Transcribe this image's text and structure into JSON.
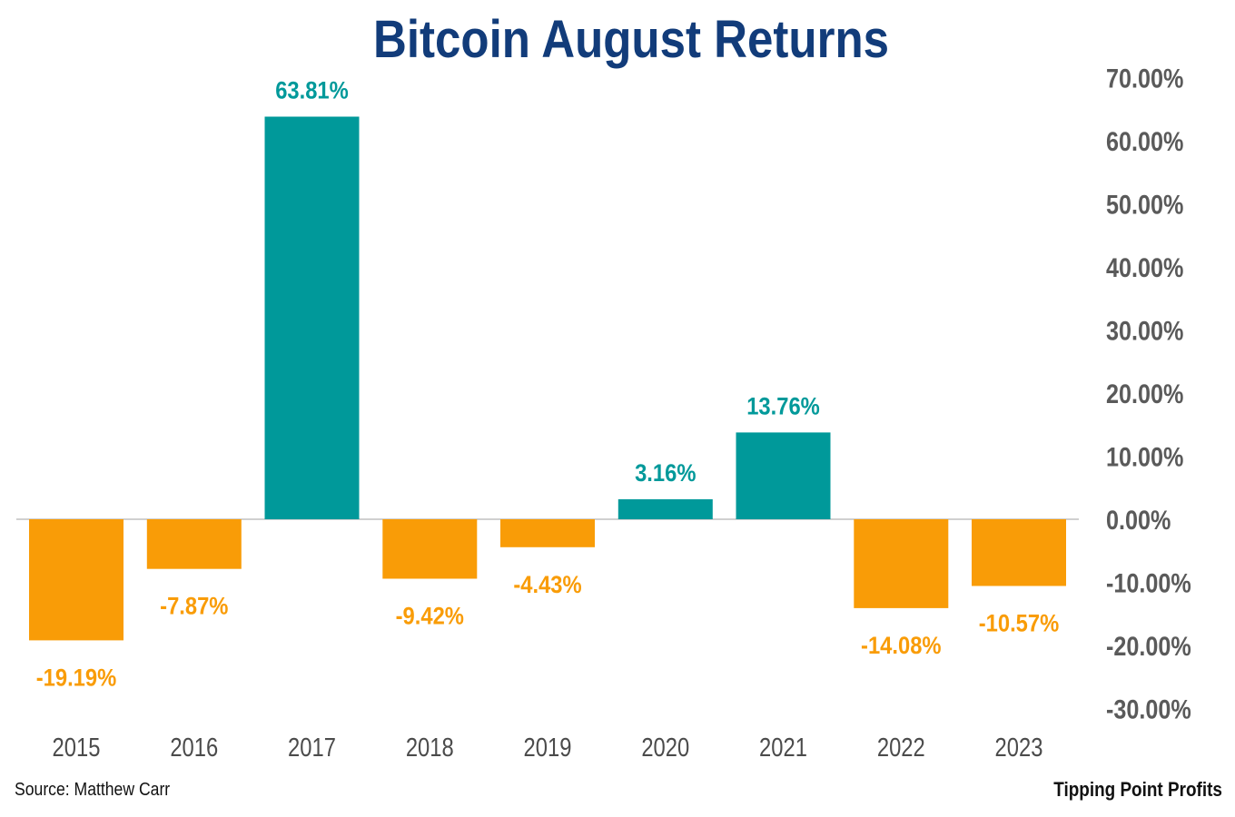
{
  "chart_data": {
    "type": "bar",
    "title": "Bitcoin August Returns",
    "categories": [
      "2015",
      "2016",
      "2017",
      "2018",
      "2019",
      "2020",
      "2021",
      "2022",
      "2023"
    ],
    "values": [
      -19.19,
      -7.87,
      63.81,
      -9.42,
      -4.43,
      3.16,
      13.76,
      -14.08,
      -10.57
    ],
    "data_labels": [
      "-19.19%",
      "-7.87%",
      "63.81%",
      "-9.42%",
      "-4.43%",
      "3.16%",
      "13.76%",
      "-14.08%",
      "-10.57%"
    ],
    "y_ticks": [
      "70.00%",
      "60.00%",
      "50.00%",
      "40.00%",
      "30.00%",
      "20.00%",
      "10.00%",
      "0.00%",
      "-10.00%",
      "-20.00%",
      "-30.00%"
    ],
    "ylim": [
      -30,
      70
    ],
    "y_axis_position": "right",
    "grid": false,
    "colors": {
      "positive": "#00999a",
      "negative": "#f99c07",
      "title": "#123c7a",
      "axis_tick_text": "#5a5a5a",
      "category_text": "#4b4b4b"
    }
  },
  "footer": {
    "source": "Source: Matthew Carr",
    "brand": "Tipping Point Profits"
  }
}
